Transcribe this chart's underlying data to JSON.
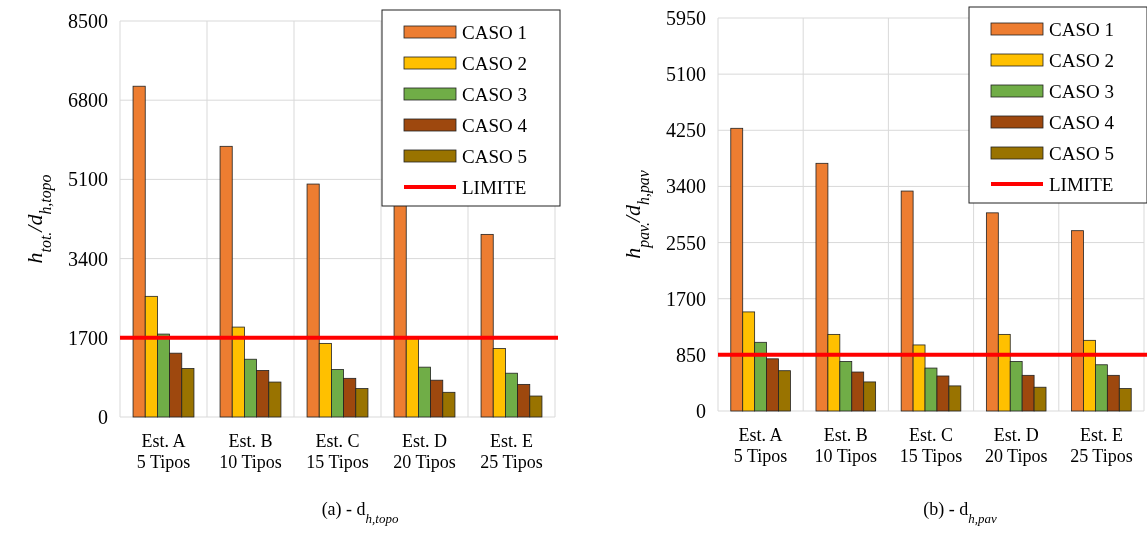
{
  "chart_data": [
    {
      "type": "bar",
      "title": "(a) - d$_{h,topo}$",
      "ylabel": "h$_{tot.}$/d$_{h,topo}$",
      "categories": [
        "Est. A\n5 Tipos",
        "Est. B\n10 Tipos",
        "Est. C\n15 Tipos",
        "Est. D\n20 Tipos",
        "Est. E\n25 Tipos"
      ],
      "ylim": [
        0,
        8500
      ],
      "yticks": [
        0,
        1700,
        3400,
        5100,
        6800,
        8500
      ],
      "grid": true,
      "legend": "top right",
      "series": [
        {
          "name": "CASO 1",
          "color": "#ed7d31",
          "values": [
            7100,
            5810,
            5000,
            4570,
            3920
          ]
        },
        {
          "name": "CASO 2",
          "color": "#ffc000",
          "values": [
            2590,
            1930,
            1580,
            1680,
            1470
          ]
        },
        {
          "name": "CASO 3",
          "color": "#70ad47",
          "values": [
            1780,
            1240,
            1020,
            1070,
            940
          ]
        },
        {
          "name": "CASO 4",
          "color": "#9e480e",
          "values": [
            1370,
            1000,
            830,
            790,
            700
          ]
        },
        {
          "name": "CASO 5",
          "color": "#997300",
          "values": [
            1040,
            750,
            610,
            530,
            450
          ]
        }
      ],
      "ref_lines": [
        {
          "axis": "y",
          "value": 1700,
          "label": "LIMITE",
          "color": "#ff0000"
        }
      ]
    },
    {
      "type": "bar",
      "title": "(b) - d$_{h,pav}$",
      "ylabel": "h$_{pav.}$/d$_{h,pav}$",
      "categories": [
        "Est. A\n5 Tipos",
        "Est. B\n10 Tipos",
        "Est. C\n15 Tipos",
        "Est. D\n20 Tipos",
        "Est. E\n25 Tipos"
      ],
      "ylim": [
        0,
        5950
      ],
      "yticks": [
        0,
        850,
        1700,
        2550,
        3400,
        4250,
        5100,
        5950
      ],
      "grid": true,
      "legend": "top right",
      "series": [
        {
          "name": "CASO 1",
          "color": "#ed7d31",
          "values": [
            4280,
            3750,
            3330,
            3000,
            2730
          ]
        },
        {
          "name": "CASO 2",
          "color": "#ffc000",
          "values": [
            1500,
            1160,
            1000,
            1160,
            1070
          ]
        },
        {
          "name": "CASO 3",
          "color": "#70ad47",
          "values": [
            1040,
            750,
            650,
            750,
            700
          ]
        },
        {
          "name": "CASO 4",
          "color": "#9e480e",
          "values": [
            790,
            590,
            530,
            540,
            540
          ]
        },
        {
          "name": "CASO 5",
          "color": "#997300",
          "values": [
            610,
            440,
            380,
            360,
            340
          ]
        }
      ],
      "ref_lines": [
        {
          "axis": "y",
          "value": 850,
          "label": "LIMITE",
          "color": "#ff0000"
        }
      ]
    }
  ]
}
